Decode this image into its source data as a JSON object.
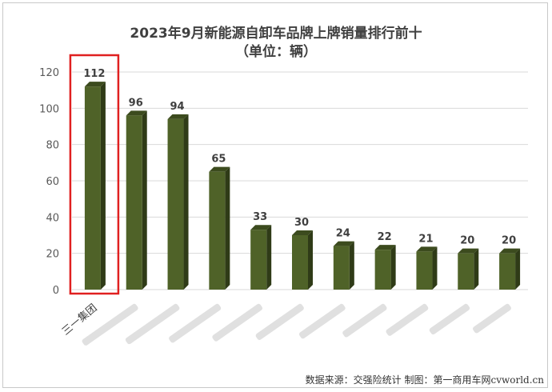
{
  "chart_data": {
    "type": "bar",
    "title": "2023年9月新能源自卸车品牌上牌销量排行前十",
    "subtitle": "（单位：辆）",
    "categories": [
      "三一集团",
      "",
      "",
      "",
      "",
      "",
      "",
      "",
      "",
      "",
      ""
    ],
    "values": [
      112,
      96,
      94,
      65,
      33,
      30,
      24,
      22,
      21,
      20,
      20
    ],
    "ylim": [
      0,
      120
    ],
    "yticks": [
      0,
      20,
      40,
      60,
      80,
      100,
      120
    ],
    "grid": true,
    "bar_color": "#4f6228",
    "highlight": {
      "index": 0,
      "color": "#e02020"
    },
    "legend": "none"
  },
  "source": "数据来源：交强险统计  制图：第一商用车网",
  "watermark": "cvworld.cn"
}
